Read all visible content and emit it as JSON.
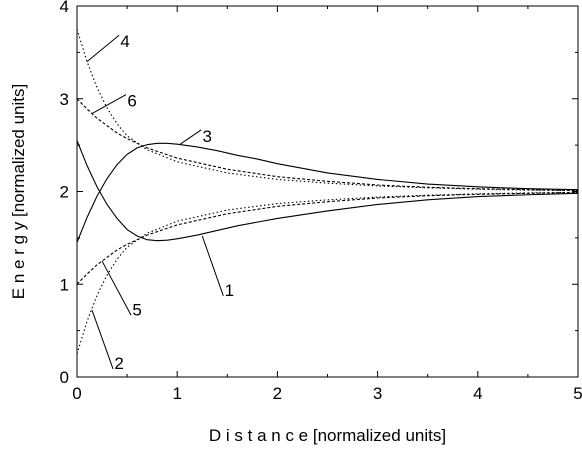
{
  "chart_data": {
    "type": "line",
    "title": "",
    "xlabel": "D i s t a n c e [normalized units]",
    "ylabel": "E n e r g y [normalized units]",
    "xlim": [
      0,
      5
    ],
    "ylim": [
      0,
      4
    ],
    "xticks": [
      "0",
      "1",
      "2",
      "3",
      "4",
      "5"
    ],
    "yticks": [
      "0",
      "1",
      "2",
      "3",
      "4"
    ],
    "grid": false,
    "legend": "none",
    "series": [
      {
        "label": "1",
        "style": "solid",
        "x": [
          0,
          0.1,
          0.2,
          0.3,
          0.4,
          0.5,
          0.6,
          0.7,
          0.8,
          0.9,
          1.0,
          1.2,
          1.4,
          1.6,
          1.8,
          2.0,
          2.5,
          3.0,
          3.5,
          4.0,
          4.5,
          5.0
        ],
        "y": [
          2.55,
          2.28,
          2.05,
          1.86,
          1.71,
          1.59,
          1.52,
          1.48,
          1.47,
          1.475,
          1.49,
          1.53,
          1.58,
          1.63,
          1.67,
          1.71,
          1.79,
          1.86,
          1.91,
          1.945,
          1.965,
          1.98
        ]
      },
      {
        "label": "2",
        "style": "dotted",
        "x": [
          0,
          0.1,
          0.2,
          0.3,
          0.4,
          0.5,
          0.7,
          1.0,
          1.5,
          2.0,
          2.5,
          3.0,
          3.5,
          4.0,
          4.5,
          5.0
        ],
        "y": [
          0.25,
          0.6,
          0.88,
          1.1,
          1.27,
          1.4,
          1.55,
          1.68,
          1.8,
          1.87,
          1.91,
          1.94,
          1.96,
          1.975,
          1.985,
          1.99
        ]
      },
      {
        "label": "3",
        "style": "solid",
        "x": [
          0,
          0.1,
          0.2,
          0.3,
          0.4,
          0.5,
          0.6,
          0.7,
          0.8,
          0.9,
          1.0,
          1.2,
          1.4,
          1.6,
          1.8,
          2.0,
          2.5,
          3.0,
          3.5,
          4.0,
          4.5,
          5.0
        ],
        "y": [
          1.45,
          1.72,
          1.95,
          2.14,
          2.29,
          2.4,
          2.47,
          2.505,
          2.52,
          2.52,
          2.51,
          2.48,
          2.44,
          2.39,
          2.35,
          2.3,
          2.2,
          2.13,
          2.08,
          2.05,
          2.03,
          2.02
        ]
      },
      {
        "label": "4",
        "style": "dotted",
        "x": [
          0,
          0.1,
          0.2,
          0.3,
          0.4,
          0.5,
          0.7,
          1.0,
          1.5,
          2.0,
          2.5,
          3.0,
          3.5,
          4.0,
          4.5,
          5.0
        ],
        "y": [
          3.75,
          3.4,
          3.12,
          2.9,
          2.73,
          2.6,
          2.45,
          2.32,
          2.2,
          2.13,
          2.09,
          2.06,
          2.04,
          2.025,
          2.015,
          2.01
        ]
      },
      {
        "label": "5",
        "style": "dashed",
        "x": [
          0,
          0.1,
          0.2,
          0.3,
          0.4,
          0.5,
          0.7,
          1.0,
          1.5,
          2.0,
          2.5,
          3.0,
          3.5,
          4.0,
          4.5,
          5.0
        ],
        "y": [
          1.0,
          1.11,
          1.21,
          1.29,
          1.37,
          1.43,
          1.53,
          1.64,
          1.76,
          1.84,
          1.89,
          1.93,
          1.955,
          1.97,
          1.98,
          1.99
        ]
      },
      {
        "label": "6",
        "style": "dashed",
        "x": [
          0,
          0.1,
          0.2,
          0.3,
          0.4,
          0.5,
          0.7,
          1.0,
          1.5,
          2.0,
          2.5,
          3.0,
          3.5,
          4.0,
          4.5,
          5.0
        ],
        "y": [
          3.0,
          2.89,
          2.79,
          2.71,
          2.63,
          2.57,
          2.47,
          2.36,
          2.24,
          2.16,
          2.11,
          2.07,
          2.045,
          2.03,
          2.02,
          2.01
        ]
      }
    ],
    "annotations": [
      {
        "text": "1",
        "x": 1.52,
        "y": 0.94,
        "point_x": 1.25,
        "point_y": 1.52
      },
      {
        "text": "2",
        "x": 0.42,
        "y": 0.15,
        "point_x": 0.15,
        "point_y": 0.72
      },
      {
        "text": "3",
        "x": 1.3,
        "y": 2.6,
        "point_x": 1.03,
        "point_y": 2.51
      },
      {
        "text": "4",
        "x": 0.48,
        "y": 3.62,
        "point_x": 0.1,
        "point_y": 3.4
      },
      {
        "text": "5",
        "x": 0.6,
        "y": 0.73,
        "point_x": 0.25,
        "point_y": 1.25
      },
      {
        "text": "6",
        "x": 0.55,
        "y": 2.98,
        "point_x": 0.15,
        "point_y": 2.84
      }
    ]
  }
}
